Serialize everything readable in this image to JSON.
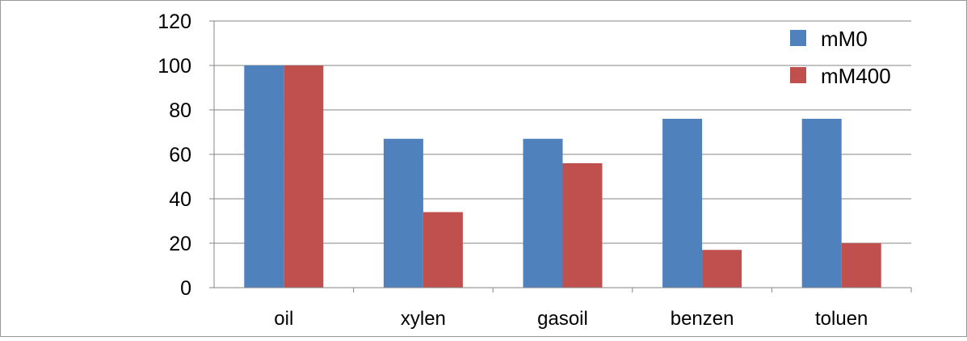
{
  "chart_data": {
    "type": "bar",
    "title": "",
    "xlabel": "",
    "ylabel": "",
    "categories": [
      "oil",
      "xylen",
      "gasoil",
      "benzen",
      "toluen"
    ],
    "series": [
      {
        "name": "mM0",
        "color": "#4f81bd",
        "values": [
          100,
          67,
          67,
          76,
          76
        ]
      },
      {
        "name": "mM400",
        "color": "#c0504d",
        "values": [
          100,
          34,
          56,
          17,
          20
        ]
      }
    ],
    "ylim": [
      0,
      120
    ],
    "yticks": [
      0,
      20,
      40,
      60,
      80,
      100,
      120
    ],
    "grid": true,
    "legend_position": "top-right"
  }
}
